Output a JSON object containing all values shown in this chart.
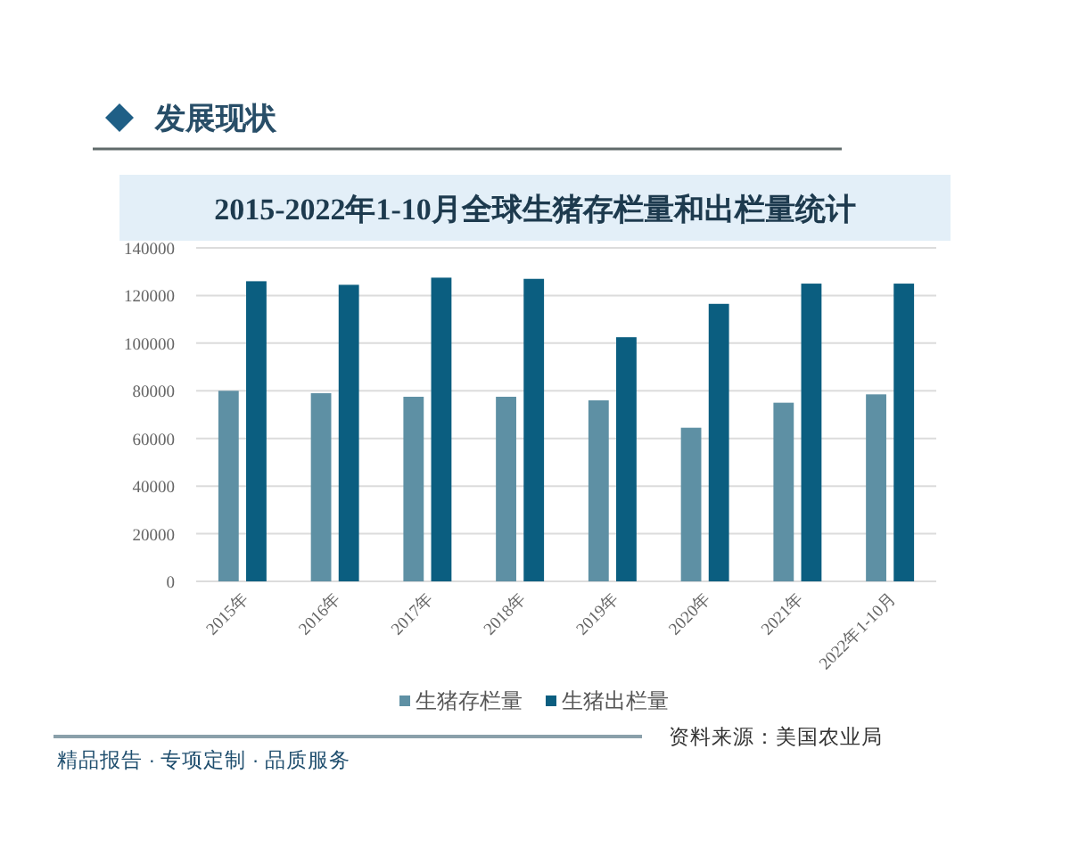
{
  "chart_data": {
    "type": "bar",
    "title": "2015-2022年1-10月全球生猪存栏量和出栏量统计",
    "categories": [
      "2015年",
      "2016年",
      "2017年",
      "2018年",
      "2019年",
      "2020年",
      "2021年",
      "2022年1-10月"
    ],
    "series": [
      {
        "name": "生猪存栏量",
        "color": "#5e90a4",
        "values": [
          80000,
          79000,
          77500,
          77500,
          76000,
          64500,
          75000,
          78500
        ]
      },
      {
        "name": "生猪出栏量",
        "color": "#0b5e80",
        "values": [
          126000,
          124500,
          127500,
          127000,
          102500,
          116500,
          125000,
          125000
        ]
      }
    ],
    "ylim": [
      0,
      140000
    ],
    "yticks": [
      0,
      20000,
      40000,
      60000,
      80000,
      100000,
      120000,
      140000
    ],
    "grid": "y",
    "legend": "bottom",
    "annotations": [
      "发展现状",
      "精品报告 · 专项定制 · 品质服务",
      "资料来源：美国农业局"
    ]
  }
}
